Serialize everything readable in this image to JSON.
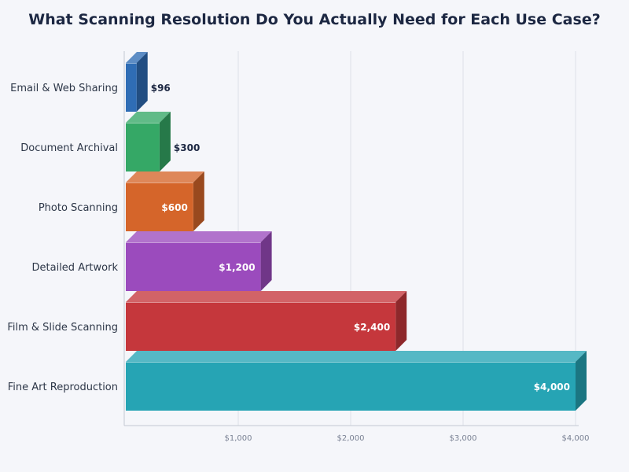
{
  "chart_data": {
    "type": "bar",
    "orientation": "horizontal",
    "title": "What Scanning Resolution Do You Actually Need for Each Use Case?",
    "categories": [
      "Email & Web Sharing",
      "Document Archival",
      "Photo Scanning",
      "Detailed Artwork",
      "Film & Slide Scanning",
      "Fine Art Reproduction"
    ],
    "values": [
      96,
      300,
      600,
      1200,
      2400,
      4000
    ],
    "value_labels": [
      "$96",
      "$300",
      "$600",
      "$1,200",
      "$2,400",
      "$4,000"
    ],
    "xlim": [
      0,
      4000
    ],
    "xticks": [
      1000,
      2000,
      3000,
      4000
    ],
    "xtick_labels": [
      "$1,000",
      "$2,000",
      "$3,000",
      "$4,000"
    ],
    "grid": "vertical",
    "style": "3d",
    "colors": [
      "#2f6db5",
      "#35a866",
      "#d5652a",
      "#9b4bbd",
      "#c5373c",
      "#26a4b4"
    ]
  }
}
